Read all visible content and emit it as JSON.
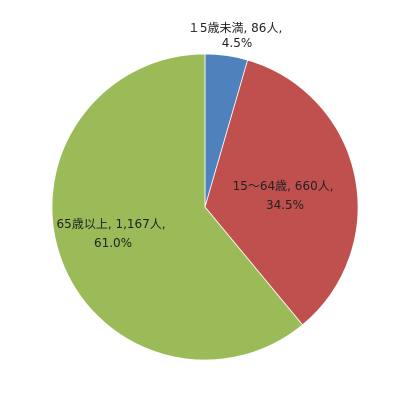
{
  "chart_data": {
    "type": "pie",
    "title": "",
    "start_angle_deg": 0,
    "direction": "clockwise",
    "slices": [
      {
        "category": "15歳未満",
        "value": 86,
        "percent": 4.5,
        "color": "#4f81bd",
        "label_line1": "１5歳未満, 86人,",
        "label_line2": "4.5%"
      },
      {
        "category": "15～64歳",
        "value": 660,
        "percent": 34.5,
        "color": "#c0504d",
        "label_line1": "15～64歳, 660人,",
        "label_line2": "34.5%"
      },
      {
        "category": "65歳以上",
        "value": 1167,
        "percent": 61.0,
        "color": "#9bbb59",
        "label_line1": "65歳以上, 1,167人,",
        "label_line2": "61.0%"
      }
    ]
  }
}
